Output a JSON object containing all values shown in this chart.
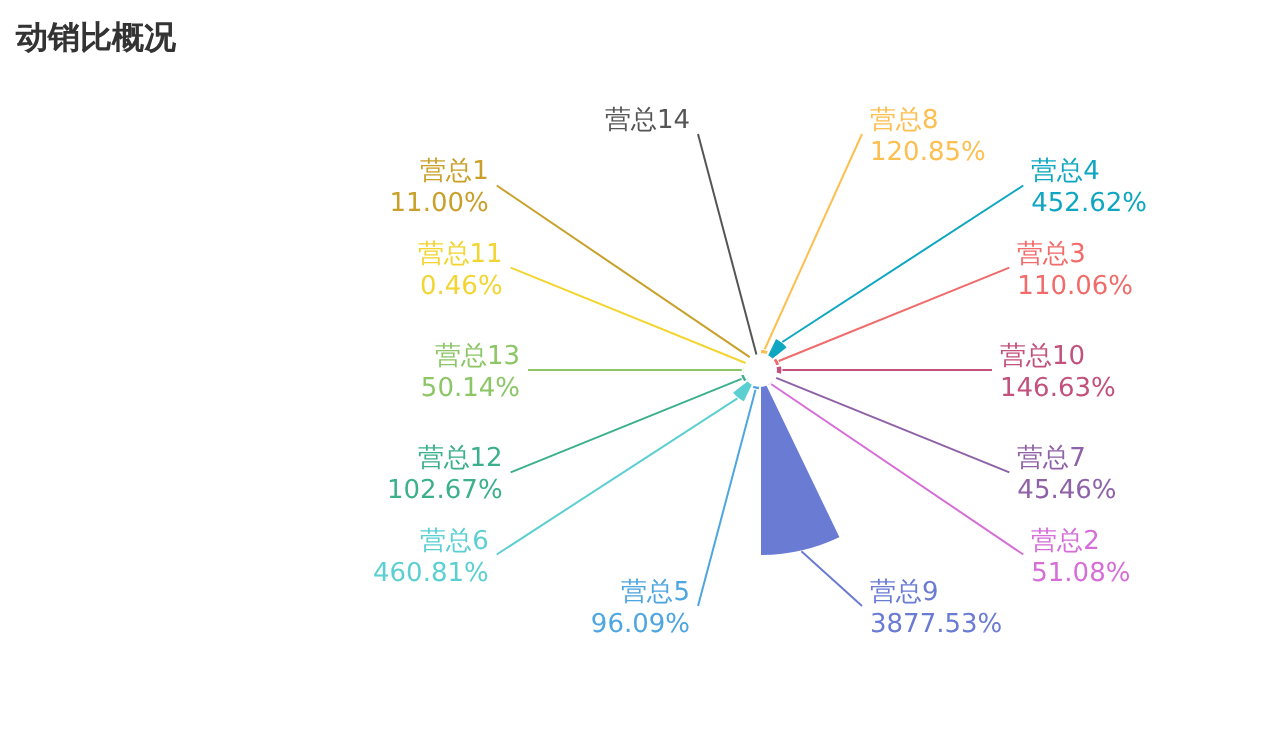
{
  "chart_data": {
    "type": "other",
    "title": "动销比概况",
    "categories": [
      "营总8",
      "营总4",
      "营总3",
      "营总10",
      "营总7",
      "营总2",
      "营总9",
      "营总5",
      "营总6",
      "营总12",
      "营总13",
      "营总11",
      "营总1",
      "营总14"
    ],
    "values": [
      120.85,
      452.62,
      110.06,
      146.63,
      45.46,
      51.08,
      3877.53,
      96.09,
      460.81,
      102.67,
      50.14,
      0.46,
      11.0,
      null
    ],
    "value_labels": [
      "120.85%",
      "452.62%",
      "110.06%",
      "146.63%",
      "45.46%",
      "51.08%",
      "3877.53%",
      "96.09%",
      "460.81%",
      "102.67%",
      "50.14%",
      "0.46%",
      "11.00%",
      null
    ],
    "colors": [
      "#fcbf50",
      "#0ea6c0",
      "#f26b6b",
      "#c2517d",
      "#8f62a8",
      "#d66ed8",
      "#6a7bd3",
      "#4ea6e0",
      "#5ccfd2",
      "#3cb08c",
      "#8cc667",
      "#f2d531",
      "#c8a02a",
      "#555555"
    ]
  }
}
